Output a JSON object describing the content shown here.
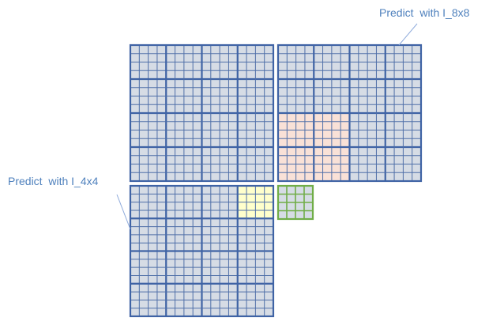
{
  "labels": {
    "predict_8x8": "Predict  with I_8x8",
    "predict_4x4": "Predict  with I_4x4"
  },
  "colors": {
    "label_text": "#4f81bd",
    "leader_line": "#8eaadb",
    "block_fill": "#d6dce5",
    "block_stroke": "#4f6fa8",
    "block_stroke_heavy": "#3f63a5",
    "pink_fill": "#f9e1d7",
    "yellow_fill": "#ffffcc",
    "green_stroke": "#70ad47",
    "green_fill": "#d6dce5"
  },
  "diagram": {
    "macroblocks": [
      {
        "name": "macroblock-top-left",
        "grid": "16x16",
        "highlight": "none"
      },
      {
        "name": "macroblock-top-right",
        "grid": "16x16",
        "highlight": "8x8-block-pink"
      },
      {
        "name": "macroblock-bottom-left",
        "grid": "16x16",
        "highlight": "4x4-block-yellow"
      }
    ],
    "current_block": {
      "name": "current-4x4-block",
      "grid": "4x4",
      "color": "green"
    }
  }
}
